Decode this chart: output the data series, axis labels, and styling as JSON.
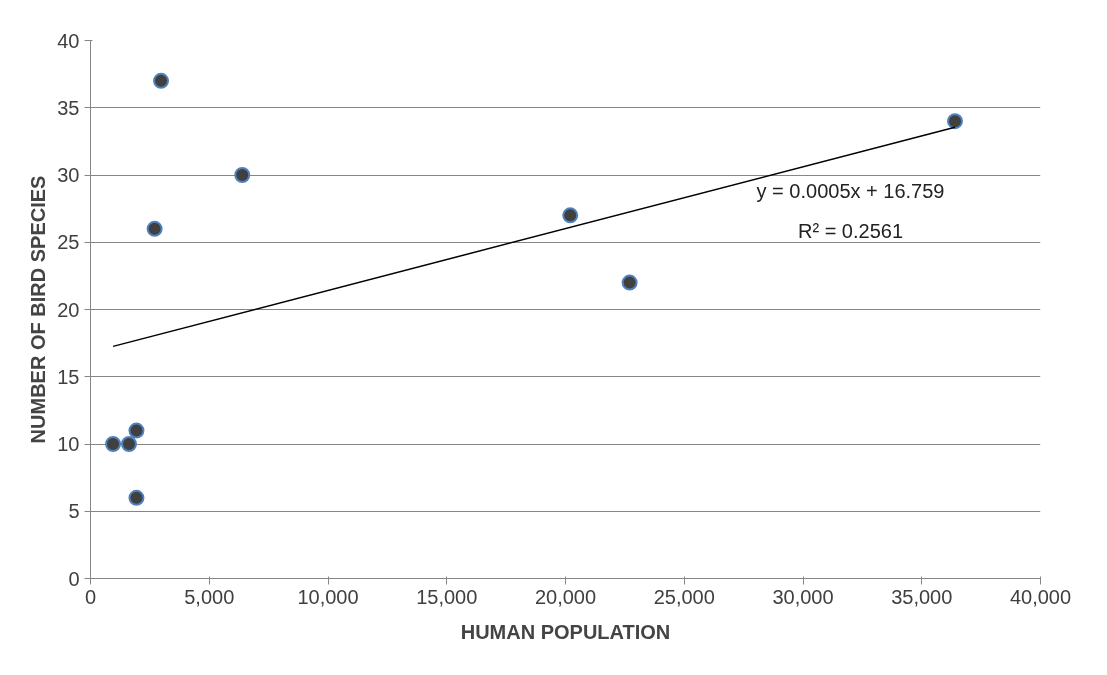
{
  "chart_data": {
    "type": "scatter",
    "xlabel": "HUMAN POPULATION",
    "ylabel": "NUMBER OF BIRD SPECIES",
    "xlim": [
      0,
      40000
    ],
    "xticks": [
      {
        "value": 0,
        "label": "0"
      },
      {
        "value": 5000,
        "label": "5,000"
      },
      {
        "value": 10000,
        "label": "10,000"
      },
      {
        "value": 15000,
        "label": "15,000"
      },
      {
        "value": 20000,
        "label": "20,000"
      },
      {
        "value": 25000,
        "label": "25,000"
      },
      {
        "value": 30000,
        "label": "30,000"
      },
      {
        "value": 35000,
        "label": "35,000"
      },
      {
        "value": 40000,
        "label": "40,000"
      }
    ],
    "ylim": [
      0,
      40
    ],
    "yticks": [
      0,
      5,
      10,
      15,
      20,
      25,
      30,
      35,
      40
    ],
    "grid": "y",
    "series": [
      {
        "marker": "circle",
        "color": "#404040",
        "x": [
          2970,
          6390,
          2700,
          950,
          1620,
          1935,
          1935,
          20200,
          22700,
          36400
        ],
        "values": [
          37,
          30,
          26,
          10,
          10,
          11,
          6,
          27,
          22,
          34
        ]
      },
      {
        "type": "line",
        "color": "#000000",
        "x": [
          950,
          36400
        ],
        "values": [
          17.26,
          33.55
        ]
      }
    ],
    "annotations": [
      "y = 0.0005x + 16.759",
      "R² = 0.2561"
    ]
  }
}
